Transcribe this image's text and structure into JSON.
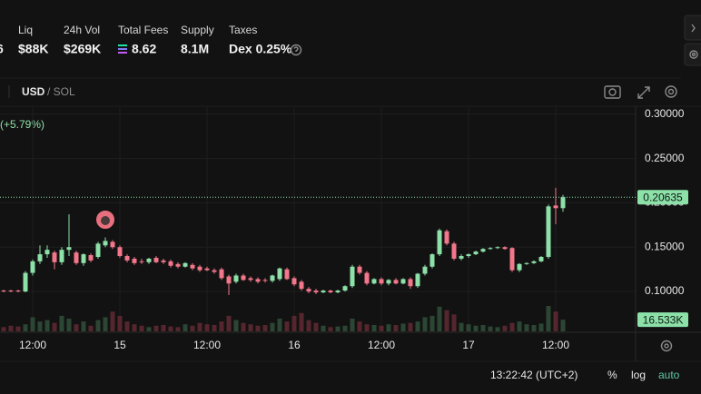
{
  "header": {
    "partial_value": "6",
    "stats": [
      {
        "label": "Liq",
        "value": "$88K"
      },
      {
        "label": "24h Vol",
        "value": "$269K"
      },
      {
        "label": "Total Fees",
        "value": "8.62"
      },
      {
        "label": "Supply",
        "value": "8.1M"
      },
      {
        "label": "Taxes",
        "value": "Dex 0.25%"
      }
    ]
  },
  "toolbar": {
    "currency": "USD",
    "alt_currency": "/ SOL"
  },
  "footer": {
    "clock": "13:22:42 (UTC+2)",
    "percent": "%",
    "log": "log",
    "auto": "auto"
  },
  "chart_data": {
    "type": "candlestick",
    "change_label": "(+5.79%)",
    "categories": [
      null,
      null,
      null,
      null,
      "12:00",
      null,
      null,
      null,
      null,
      null,
      null,
      null,
      null,
      null,
      null,
      null,
      "15",
      null,
      null,
      null,
      null,
      null,
      null,
      null,
      null,
      null,
      null,
      null,
      "12:00",
      null,
      null,
      null,
      null,
      null,
      null,
      null,
      null,
      null,
      null,
      null,
      "16",
      null,
      null,
      null,
      null,
      null,
      null,
      null,
      null,
      null,
      null,
      null,
      "12:00",
      null,
      null,
      null,
      null,
      null,
      null,
      null,
      null,
      null,
      null,
      null,
      "17",
      null,
      null,
      null,
      null,
      null,
      null,
      null,
      null,
      null,
      null,
      null,
      "12:00",
      null
    ],
    "open": [
      0.101,
      0.101,
      0.101,
      0.1,
      0.121,
      0.134,
      0.142,
      0.144,
      0.133,
      0.147,
      0.144,
      0.132,
      0.141,
      0.139,
      0.152,
      0.156,
      0.15,
      0.14,
      0.137,
      0.134,
      0.133,
      0.138,
      0.135,
      0.134,
      0.131,
      0.128,
      0.13,
      0.128,
      0.126,
      0.124,
      0.125,
      0.117,
      0.111,
      0.118,
      0.115,
      0.114,
      0.113,
      0.112,
      0.114,
      0.125,
      0.115,
      0.111,
      0.103,
      0.101,
      0.099,
      0.101,
      0.099,
      0.101,
      0.106,
      0.128,
      0.121,
      0.109,
      0.114,
      0.109,
      0.113,
      0.109,
      0.114,
      0.106,
      0.12,
      0.128,
      0.142,
      0.168,
      0.154,
      0.137,
      0.14,
      0.142,
      0.145,
      0.148,
      0.149,
      0.15,
      0.149,
      0.124,
      0.131,
      0.132,
      0.134,
      0.139,
      0.197,
      0.194
    ],
    "high": [
      0.102,
      0.102,
      0.102,
      0.123,
      0.136,
      0.152,
      0.152,
      0.146,
      0.15,
      0.187,
      0.146,
      0.143,
      0.143,
      0.156,
      0.161,
      0.158,
      0.152,
      0.142,
      0.139,
      0.137,
      0.138,
      0.14,
      0.137,
      0.136,
      0.133,
      0.133,
      0.132,
      0.13,
      0.128,
      0.126,
      0.127,
      0.119,
      0.12,
      0.12,
      0.117,
      0.116,
      0.115,
      0.119,
      0.127,
      0.127,
      0.117,
      0.113,
      0.105,
      0.103,
      0.102,
      0.102,
      0.102,
      0.107,
      0.13,
      0.13,
      0.123,
      0.115,
      0.116,
      0.114,
      0.115,
      0.115,
      0.116,
      0.121,
      0.13,
      0.143,
      0.171,
      0.17,
      0.156,
      0.142,
      0.143,
      0.146,
      0.149,
      0.15,
      0.151,
      0.151,
      0.15,
      0.132,
      0.133,
      0.135,
      0.14,
      0.198,
      0.217,
      0.209
    ],
    "low": [
      0.099,
      0.099,
      0.099,
      0.099,
      0.118,
      0.131,
      0.138,
      0.125,
      0.13,
      0.14,
      0.13,
      0.129,
      0.133,
      0.137,
      0.15,
      0.148,
      0.138,
      0.133,
      0.13,
      0.131,
      0.131,
      0.132,
      0.131,
      0.127,
      0.126,
      0.127,
      0.124,
      0.122,
      0.123,
      0.12,
      0.113,
      0.096,
      0.109,
      0.112,
      0.111,
      0.109,
      0.11,
      0.11,
      0.112,
      0.113,
      0.106,
      0.101,
      0.098,
      0.097,
      0.098,
      0.098,
      0.098,
      0.1,
      0.104,
      0.119,
      0.107,
      0.108,
      0.107,
      0.107,
      0.108,
      0.108,
      0.103,
      0.104,
      0.118,
      0.126,
      0.14,
      0.152,
      0.135,
      0.135,
      0.138,
      0.141,
      0.144,
      0.147,
      0.148,
      0.147,
      0.122,
      0.122,
      0.13,
      0.131,
      0.133,
      0.137,
      0.176,
      0.19
    ],
    "close": [
      0.1,
      0.1,
      0.1,
      0.121,
      0.134,
      0.142,
      0.147,
      0.133,
      0.147,
      0.15,
      0.132,
      0.142,
      0.135,
      0.154,
      0.157,
      0.15,
      0.14,
      0.135,
      0.132,
      0.133,
      0.137,
      0.133,
      0.133,
      0.129,
      0.128,
      0.132,
      0.126,
      0.124,
      0.124,
      0.122,
      0.115,
      0.109,
      0.118,
      0.113,
      0.113,
      0.111,
      0.112,
      0.118,
      0.126,
      0.114,
      0.108,
      0.103,
      0.1,
      0.099,
      0.101,
      0.099,
      0.101,
      0.106,
      0.128,
      0.121,
      0.109,
      0.114,
      0.109,
      0.113,
      0.109,
      0.114,
      0.106,
      0.12,
      0.128,
      0.142,
      0.169,
      0.154,
      0.137,
      0.14,
      0.142,
      0.145,
      0.148,
      0.149,
      0.15,
      0.148,
      0.124,
      0.131,
      0.132,
      0.134,
      0.139,
      0.196,
      0.194,
      0.20635
    ],
    "volume": [
      6,
      8,
      7,
      10,
      20,
      14,
      16,
      12,
      22,
      18,
      10,
      14,
      8,
      16,
      20,
      28,
      22,
      14,
      10,
      8,
      6,
      8,
      9,
      7,
      6,
      10,
      8,
      12,
      10,
      9,
      14,
      22,
      16,
      12,
      10,
      8,
      9,
      12,
      18,
      14,
      22,
      26,
      16,
      12,
      8,
      6,
      7,
      8,
      18,
      14,
      10,
      9,
      8,
      10,
      9,
      11,
      12,
      14,
      20,
      22,
      35,
      30,
      24,
      12,
      10,
      8,
      9,
      7,
      6,
      8,
      12,
      14,
      10,
      9,
      11,
      36,
      28,
      16.533
    ],
    "volume_last_label": "16.533K",
    "ylim": [
      0.055,
      0.308
    ],
    "yticks": [
      {
        "value": 0.1,
        "label": "0.10000"
      },
      {
        "value": 0.15,
        "label": "0.15000"
      },
      {
        "value": 0.2,
        "label": "0.20000"
      },
      {
        "value": 0.25,
        "label": "0.25000"
      },
      {
        "value": 0.3,
        "label": "0.30000"
      }
    ],
    "grid": true,
    "up_color": "#8ce0a8",
    "down_color": "#f2778b",
    "volume_up_color": "#2c4634",
    "volume_down_color": "#55262e"
  }
}
